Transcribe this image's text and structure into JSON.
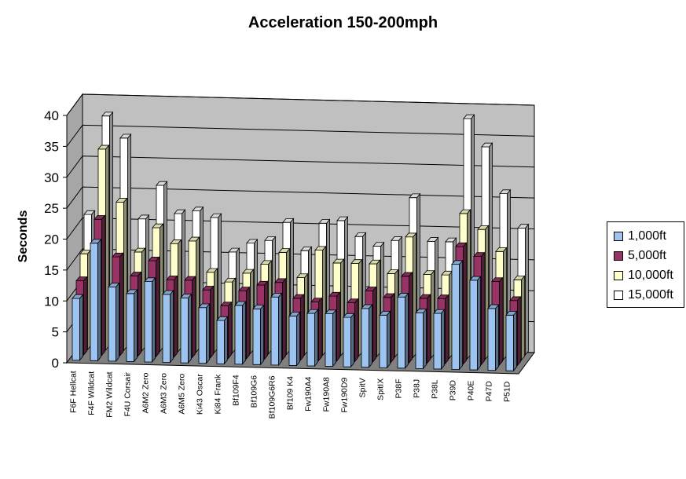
{
  "chart_data": {
    "type": "bar",
    "subtype": "3d-stacked-depth",
    "title": "Acceleration 150-200mph",
    "xlabel": "",
    "ylabel": "Seconds",
    "ylim": [
      0,
      40
    ],
    "yticks": [
      0,
      5,
      10,
      15,
      20,
      25,
      30,
      35,
      40
    ],
    "grid": true,
    "legend_position": "right",
    "categories": [
      "F6F Hellcat",
      "F4F Wildcat",
      "FM2 Wildcat",
      "F4U Corsair",
      "A6M2 Zero",
      "A6M3 Zero",
      "A6M5 Zero",
      "Ki43 Oscar",
      "Ki84 Frank",
      "Bf109F4",
      "Bf109G6",
      "Bf109G6R6",
      "Bf109 K4",
      "Fw190A4",
      "Fw190A8",
      "Fw190D9",
      "SpitV",
      "SpitIX",
      "P38F",
      "P38J",
      "P38L",
      "P39D",
      "P40E",
      "P47D",
      "P51D"
    ],
    "series": [
      {
        "name": "1,000ft",
        "color": "#9DC3F0",
        "values": [
          10,
          19,
          12,
          11,
          13,
          11,
          10.5,
          9,
          7,
          9.5,
          9,
          11,
          8,
          8.5,
          8.5,
          8,
          9.5,
          8.5,
          11.5,
          9,
          9,
          17,
          14.5,
          10,
          9
        ]
      },
      {
        "name": "5,000ft",
        "color": "#993366",
        "values": [
          12,
          22,
          16,
          13,
          15.5,
          12.5,
          12.5,
          11,
          8.5,
          11,
          12,
          12.5,
          10,
          9.5,
          10.5,
          9.5,
          11.5,
          10.5,
          14,
          10.5,
          10.5,
          19,
          17.5,
          13.5,
          10.5
        ]
      },
      {
        "name": "10,000ft",
        "color": "#FFFFCC",
        "values": [
          15.5,
          32.5,
          24,
          16,
          20,
          17.5,
          18,
          13,
          11.5,
          13,
          14.5,
          16.5,
          12.5,
          17,
          15,
          15,
          15,
          13.5,
          19.5,
          13.5,
          13.5,
          23.5,
          21,
          17.5,
          13
        ]
      },
      {
        "name": "15,000ft",
        "color": "#FFFFFF",
        "values": [
          21,
          37,
          33.5,
          20.5,
          26,
          21.5,
          22,
          21,
          15.5,
          17,
          17.5,
          20.5,
          16,
          20.5,
          21,
          18.5,
          17,
          18,
          25,
          18,
          18,
          38,
          33.5,
          26,
          20.5
        ]
      }
    ]
  }
}
